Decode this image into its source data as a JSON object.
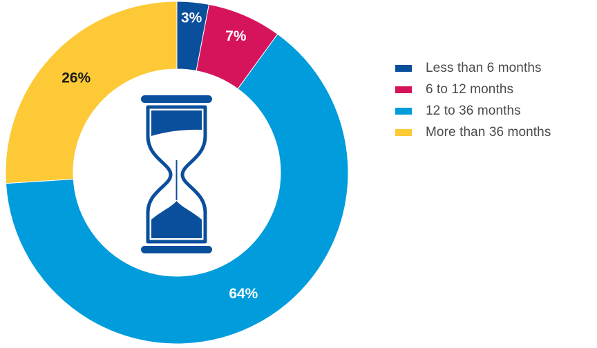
{
  "chart_data": {
    "type": "pie",
    "variant": "donut",
    "categories": [
      "Less than 6 months",
      "6 to 12 months",
      "12 to 36 months",
      "More than 36 months"
    ],
    "values": [
      3,
      7,
      64,
      26
    ],
    "value_labels": [
      "3%",
      "7%",
      "64%",
      "26%"
    ],
    "colors": [
      "#0a4f9c",
      "#d6145b",
      "#009cdc",
      "#fdc936"
    ],
    "label_colors": [
      "#ffffff",
      "#ffffff",
      "#ffffff",
      "#1a1a1a"
    ],
    "center_icon": "hourglass-icon",
    "center_icon_color": "#0a4f9c",
    "legend_position": "right"
  }
}
